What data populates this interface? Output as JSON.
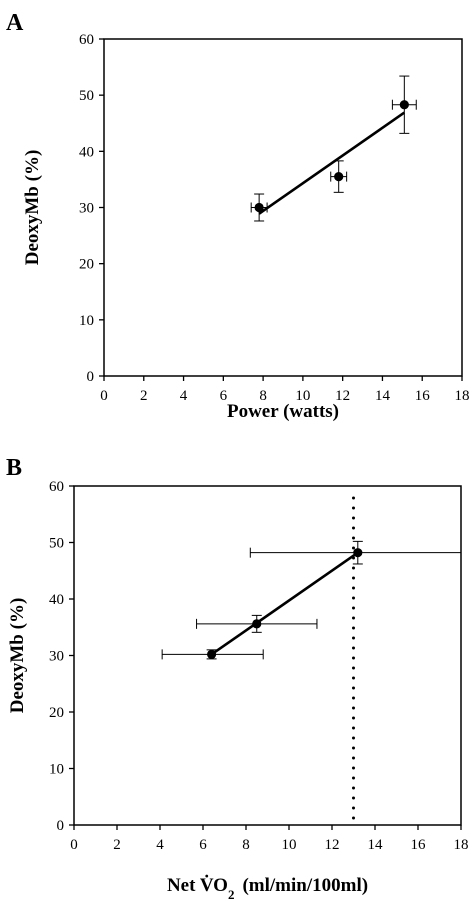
{
  "chart_data": [
    {
      "type": "scatter",
      "panel_label": "A",
      "xlabel": "Power (watts)",
      "ylabel": "DeoxyMb (%)",
      "xlim": [
        0,
        18
      ],
      "ylim": [
        0,
        60
      ],
      "xticks": [
        0,
        2,
        4,
        6,
        8,
        10,
        12,
        14,
        16,
        18
      ],
      "yticks": [
        0,
        10,
        20,
        30,
        40,
        50,
        60
      ],
      "grid": false,
      "legend": "none",
      "points": [
        {
          "x": 7.8,
          "y": 30.0,
          "yerr": 2.4,
          "xerr": 0.4
        },
        {
          "x": 11.8,
          "y": 35.5,
          "yerr": 2.8,
          "xerr": 0.4
        },
        {
          "x": 15.1,
          "y": 48.3,
          "yerr": 5.1,
          "xerr": 0.6
        }
      ],
      "fit_line": {
        "x": [
          7.8,
          15.1
        ],
        "y": [
          28.9,
          46.9
        ]
      }
    },
    {
      "type": "scatter",
      "panel_label": "B",
      "xlabel": "Net V̇O",
      "xlabel_sub": "2",
      "xlabel_units": "(ml/min/100ml)",
      "ylabel": "DeoxyMb (%)",
      "xlim": [
        0,
        18
      ],
      "ylim": [
        0,
        60
      ],
      "xticks": [
        0,
        2,
        4,
        6,
        8,
        10,
        12,
        14,
        16,
        18
      ],
      "yticks": [
        0,
        10,
        20,
        30,
        40,
        50,
        60
      ],
      "grid": false,
      "legend": "none",
      "points": [
        {
          "x": 6.4,
          "y": 30.2,
          "xerr_lo": 2.3,
          "xerr_hi": 2.4,
          "yerr": 0.8
        },
        {
          "x": 8.5,
          "y": 35.6,
          "xerr_lo": 2.8,
          "xerr_hi": 2.8,
          "yerr": 1.5
        },
        {
          "x": 13.2,
          "y": 48.2,
          "xerr_lo": 5.0,
          "xerr_hi": 4.8,
          "yerr": 2.0
        }
      ],
      "fit_line": {
        "x": [
          6.4,
          13.2
        ],
        "y": [
          30.2,
          48.2
        ]
      },
      "vline": {
        "x": 13.0,
        "style": "dotted"
      }
    }
  ]
}
